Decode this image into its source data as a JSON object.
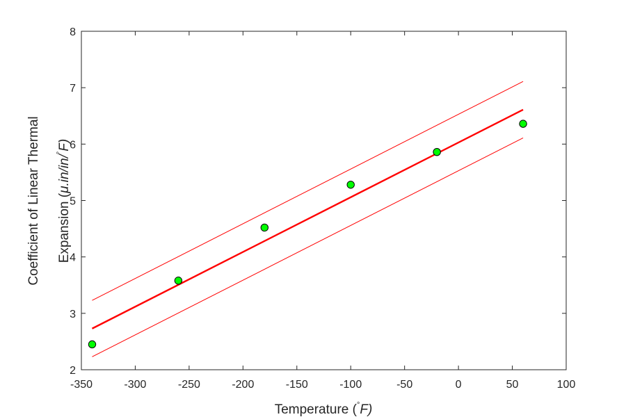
{
  "chart_data": {
    "type": "scatter",
    "title": "",
    "xlabel": {
      "prefix": "Temperature (",
      "degree": "°",
      "unit": "F",
      "suffix": ")"
    },
    "ylabel": {
      "line1": "Coefficient of Linear Thermal",
      "line2_prefix": "Expansion (",
      "line2_unit": "μ.in/in/",
      "line2_degree": "°",
      "line2_unit2": "F",
      "line2_suffix": ")"
    },
    "xlim": [
      -350,
      100
    ],
    "ylim": [
      2,
      8
    ],
    "xticks": [
      -350,
      -300,
      -250,
      -200,
      -150,
      -100,
      -50,
      0,
      50,
      100
    ],
    "yticks": [
      2,
      3,
      4,
      5,
      6,
      7,
      8
    ],
    "grid": false,
    "box": true,
    "series": [
      {
        "kind": "points",
        "x": [
          -340,
          -260,
          -180,
          -100,
          -20,
          60
        ],
        "y": [
          2.45,
          3.58,
          4.52,
          5.28,
          5.86,
          6.36
        ],
        "color": "#00ff00",
        "edge_color": "#000000"
      },
      {
        "kind": "fit-line",
        "x": [
          -340,
          60
        ],
        "y": [
          2.73,
          6.61
        ],
        "color": "#ff0000"
      },
      {
        "kind": "upper-bound-line",
        "x": [
          -340,
          60
        ],
        "y": [
          3.23,
          7.11
        ],
        "color": "#ff0000"
      },
      {
        "kind": "lower-bound-line",
        "x": [
          -340,
          60
        ],
        "y": [
          2.23,
          6.11
        ],
        "color": "#ff0000"
      }
    ]
  }
}
